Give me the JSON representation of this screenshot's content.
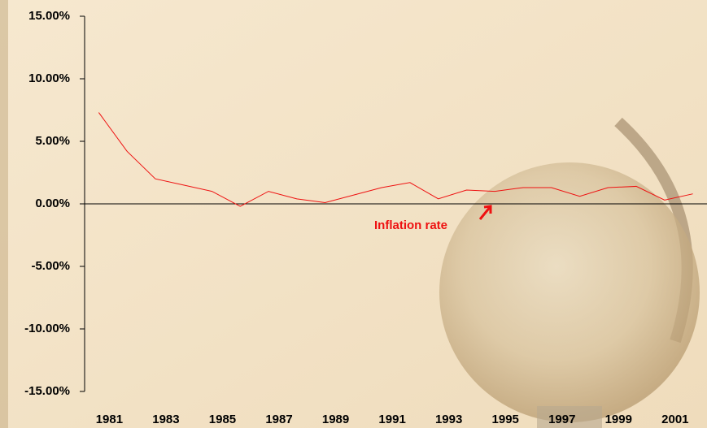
{
  "chart_data": {
    "type": "line",
    "categories": [
      "1981",
      null,
      "1983",
      null,
      "1985",
      null,
      "1987",
      null,
      "1989",
      null,
      "1991",
      null,
      "1993",
      null,
      "1995",
      null,
      "1997",
      null,
      "1999",
      null,
      "2001",
      null
    ],
    "series": [
      {
        "name": "Inflation rate",
        "color": "#ee1111",
        "values": [
          7.3,
          4.2,
          2.0,
          1.5,
          1.0,
          -0.2,
          1.0,
          0.4,
          0.1,
          0.7,
          1.3,
          1.7,
          0.4,
          1.1,
          1.0,
          1.3,
          1.3,
          0.6,
          1.3,
          1.4,
          0.3,
          0.8
        ]
      }
    ],
    "ylim": [
      -15,
      15
    ],
    "yticks": [
      {
        "value": -15,
        "label": "-15.00%"
      },
      {
        "value": -10,
        "label": "-10.00%"
      },
      {
        "value": -5,
        "label": "-5.00%"
      },
      {
        "value": 0,
        "label": "0.00%"
      },
      {
        "value": 5,
        "label": "5.00%"
      },
      {
        "value": 10,
        "label": "10.00%"
      },
      {
        "value": 15,
        "label": "15.00%"
      }
    ],
    "annotation": "Inflation rate"
  }
}
